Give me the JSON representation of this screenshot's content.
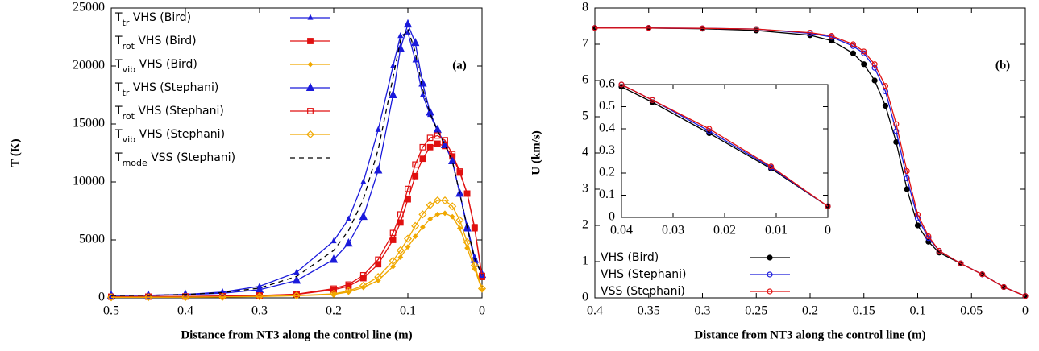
{
  "chart_data": [
    {
      "type": "line",
      "xlabel": "Distance from NT3 along the control line (m)",
      "ylabel": "T (K)",
      "annotation": "(a)",
      "xlim": [
        0.5,
        0
      ],
      "ylim": [
        0,
        25000
      ],
      "xticks": [
        0.5,
        0.4,
        0.3,
        0.2,
        0.1,
        0
      ],
      "yticks": [
        0,
        5000,
        10000,
        15000,
        20000,
        25000
      ],
      "legend": "top-left",
      "x": [
        0.5,
        0.45,
        0.4,
        0.35,
        0.3,
        0.25,
        0.2,
        0.18,
        0.16,
        0.14,
        0.12,
        0.11,
        0.1,
        0.09,
        0.08,
        0.07,
        0.06,
        0.05,
        0.04,
        0.03,
        0.02,
        0.01,
        0
      ],
      "series": [
        {
          "name": "Ttr VHS (Bird)",
          "color": "#1a1adb",
          "marker": "small-triangle",
          "values": [
            200,
            220,
            300,
            500,
            1000,
            2200,
            4900,
            6800,
            10000,
            14500,
            20000,
            22600,
            22900,
            20500,
            17500,
            15800,
            14400,
            13300,
            11800,
            9000,
            6200,
            3500,
            2000
          ]
        },
        {
          "name": "Trot VHS (Bird)",
          "color": "#e01010",
          "marker": "square",
          "values": [
            100,
            110,
            120,
            150,
            200,
            300,
            700,
            1000,
            1700,
            2900,
            5000,
            6500,
            8500,
            10500,
            12000,
            13000,
            13300,
            13100,
            12200,
            10800,
            9000,
            6000,
            1800
          ]
        },
        {
          "name": "Tvib VHS (Bird)",
          "color": "#f0a800",
          "marker": "small-diamond",
          "values": [
            50,
            55,
            60,
            80,
            120,
            180,
            300,
            500,
            900,
            1500,
            2700,
            3500,
            4400,
            5300,
            6100,
            6800,
            7200,
            7300,
            7000,
            6000,
            4300,
            2500,
            700
          ]
        },
        {
          "name": "Ttr VHS (Stephani)",
          "color": "#1a1adb",
          "marker": "triangle",
          "values": [
            200,
            220,
            280,
            400,
            700,
            1500,
            3300,
            4700,
            7000,
            11000,
            17500,
            21500,
            23600,
            22000,
            18500,
            16000,
            14500,
            13200,
            11800,
            9000,
            6000,
            3300,
            2000
          ]
        },
        {
          "name": "Trot VHS (Stephani)",
          "color": "#e01010",
          "marker": "open-square",
          "values": [
            100,
            110,
            120,
            150,
            210,
            320,
            800,
            1150,
            1950,
            3300,
            5600,
            7200,
            9400,
            11500,
            13000,
            13800,
            14000,
            13600,
            12400,
            10900,
            9000,
            6100,
            1900
          ]
        },
        {
          "name": "Tvib VHS (Stephani)",
          "color": "#f0a800",
          "marker": "open-diamond",
          "values": [
            50,
            55,
            60,
            80,
            130,
            200,
            350,
            600,
            1050,
            1800,
            3200,
            4100,
            5100,
            6200,
            7200,
            8000,
            8400,
            8400,
            7900,
            6700,
            4800,
            2800,
            800
          ]
        },
        {
          "name": "Tmode VSS (Stephani)",
          "color": "#000000",
          "dash": true,
          "values": [
            200,
            220,
            290,
            450,
            850,
            1850,
            4100,
            5800,
            8500,
            12800,
            19000,
            22200,
            23200,
            21200,
            18000,
            15900,
            14400,
            13200,
            11800,
            9000,
            6100,
            3400,
            2000
          ]
        }
      ]
    },
    {
      "type": "line",
      "xlabel": "Distance from NT3 along the control line (m)",
      "ylabel": "U (km/s)",
      "annotation": "(b)",
      "xlim": [
        0.4,
        0
      ],
      "ylim": [
        0,
        8
      ],
      "xticks": [
        0.4,
        0.35,
        0.3,
        0.25,
        0.2,
        0.15,
        0.1,
        0.05,
        0
      ],
      "yticks": [
        0,
        1,
        2,
        3,
        4,
        5,
        6,
        7,
        8
      ],
      "legend": "bottom-left",
      "x": [
        0.4,
        0.35,
        0.3,
        0.25,
        0.2,
        0.18,
        0.16,
        0.15,
        0.14,
        0.13,
        0.12,
        0.11,
        0.1,
        0.09,
        0.08,
        0.06,
        0.04,
        0.02,
        0
      ],
      "series": [
        {
          "name": "VHS (Bird)",
          "color": "#000000",
          "marker": "circle",
          "values": [
            7.45,
            7.45,
            7.43,
            7.38,
            7.25,
            7.1,
            6.75,
            6.45,
            6.0,
            5.3,
            4.3,
            3.0,
            2.0,
            1.55,
            1.25,
            0.95,
            0.65,
            0.3,
            0.05
          ]
        },
        {
          "name": "VHS (Stephani)",
          "color": "#1a1adb",
          "marker": "open-circle",
          "values": [
            7.45,
            7.45,
            7.44,
            7.42,
            7.3,
            7.2,
            6.95,
            6.75,
            6.35,
            5.7,
            4.6,
            3.3,
            2.2,
            1.65,
            1.3,
            0.95,
            0.65,
            0.3,
            0.05
          ]
        },
        {
          "name": "VSS (Stephani)",
          "color": "#e01010",
          "marker": "open-circle",
          "values": [
            7.45,
            7.45,
            7.44,
            7.42,
            7.32,
            7.23,
            7.0,
            6.8,
            6.45,
            5.85,
            4.8,
            3.5,
            2.3,
            1.7,
            1.3,
            0.95,
            0.65,
            0.3,
            0.05
          ]
        }
      ]
    },
    {
      "type": "line",
      "xlim": [
        0.04,
        0
      ],
      "ylim": [
        0,
        0.6
      ],
      "xticks": [
        0.04,
        0.03,
        0.02,
        0.01,
        0
      ],
      "yticks": [
        0,
        0.1,
        0.2,
        0.3,
        0.4,
        0.5,
        0.6
      ],
      "x": [
        0.04,
        0.034,
        0.023,
        0.011,
        0
      ],
      "series": [
        {
          "color": "#000000",
          "marker": "circle",
          "values": [
            0.59,
            0.52,
            0.38,
            0.22,
            0.05
          ]
        },
        {
          "color": "#1a1adb",
          "marker": "open-circle",
          "values": [
            0.6,
            0.53,
            0.39,
            0.225,
            0.05
          ]
        },
        {
          "color": "#e01010",
          "marker": "open-circle",
          "values": [
            0.6,
            0.53,
            0.4,
            0.23,
            0.05
          ]
        }
      ]
    }
  ]
}
